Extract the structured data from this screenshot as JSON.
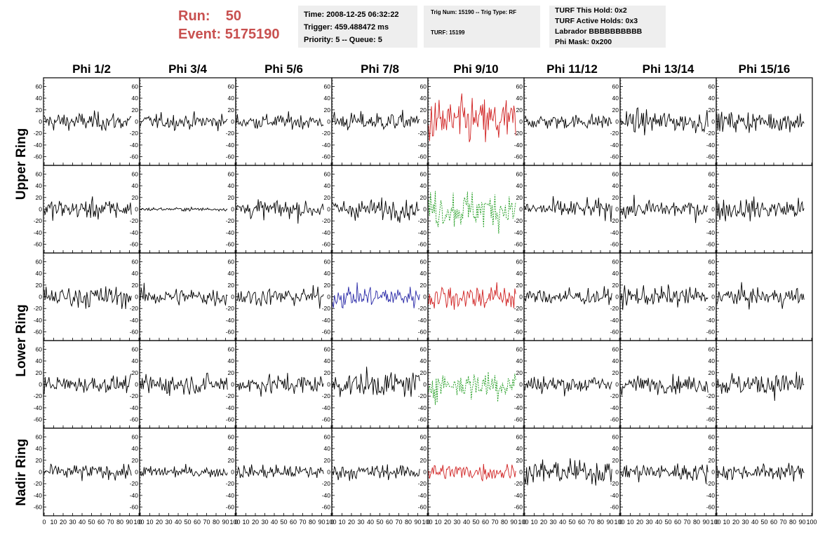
{
  "header": {
    "run_label": "Run:",
    "run_value": "50",
    "event_label": "Event:",
    "event_value": "5175190",
    "run_color": "#c8504f"
  },
  "info_time": {
    "time": "Time: 2008-12-25 06:32:22",
    "trigger": "Trigger: 459.488472 ms",
    "priority": "Priority: 5 -- Queue: 5"
  },
  "info_trig": {
    "trig": "Trig Num: 15190 -- Trig Type: RF",
    "turf": "TURF: 15199"
  },
  "info_turf": {
    "hold": "TURF This Hold: 0x2",
    "active": "TURF Active Holds: 0x3",
    "labrador": "Labrador BBBBBBBBBB",
    "phimask": "Phi Mask: 0x200"
  },
  "columns": [
    "Phi 1/2",
    "Phi 3/4",
    "Phi 5/6",
    "Phi 7/8",
    "Phi 9/10",
    "Phi 11/12",
    "Phi 13/14",
    "Phi 15/16"
  ],
  "rings": [
    "Upper Ring",
    "Lower Ring",
    "Nadir Ring"
  ],
  "chart_data": {
    "type": "line",
    "layout": "grid 5 rows x 8 columns of waveform panels",
    "row_groups": [
      {
        "label": "Upper Ring",
        "rows": [
          0,
          1
        ]
      },
      {
        "label": "Lower Ring",
        "rows": [
          2,
          3
        ]
      },
      {
        "label": "Nadir Ring",
        "rows": [
          4
        ]
      }
    ],
    "ylim": [
      -70,
      70
    ],
    "yticks": [
      -60,
      -40,
      -20,
      0,
      20,
      40,
      60
    ],
    "xlim": [
      0,
      100
    ],
    "xticks": [
      "0",
      "10",
      "20",
      "30",
      "40",
      "50",
      "60",
      "70",
      "80",
      "90",
      "100"
    ],
    "samples_shown": 92,
    "colors": {
      "normal": "#000000",
      "red": "#d02020",
      "green": "#1a9a1a",
      "blue": "#2a2aa8"
    },
    "panel_color": [
      [
        "normal",
        "normal",
        "normal",
        "normal",
        "red",
        "normal",
        "normal",
        "normal"
      ],
      [
        "normal",
        "normal",
        "normal",
        "normal",
        "green",
        "normal",
        "normal",
        "normal"
      ],
      [
        "normal",
        "normal",
        "normal",
        "blue",
        "red",
        "normal",
        "normal",
        "normal"
      ],
      [
        "normal",
        "normal",
        "normal",
        "normal",
        "green",
        "normal",
        "normal",
        "normal"
      ],
      [
        "normal",
        "normal",
        "normal",
        "normal",
        "red",
        "normal",
        "normal",
        "normal"
      ]
    ],
    "panel_rms": [
      [
        11,
        9,
        9,
        11,
        28,
        9,
        13,
        12
      ],
      [
        12,
        2,
        11,
        12,
        22,
        11,
        11,
        13
      ],
      [
        13,
        11,
        11,
        13,
        16,
        10,
        12,
        11
      ],
      [
        10,
        12,
        12,
        15,
        18,
        11,
        10,
        14
      ],
      [
        9,
        7,
        8,
        9,
        10,
        14,
        11,
        9
      ]
    ],
    "dashed_color": "green"
  }
}
